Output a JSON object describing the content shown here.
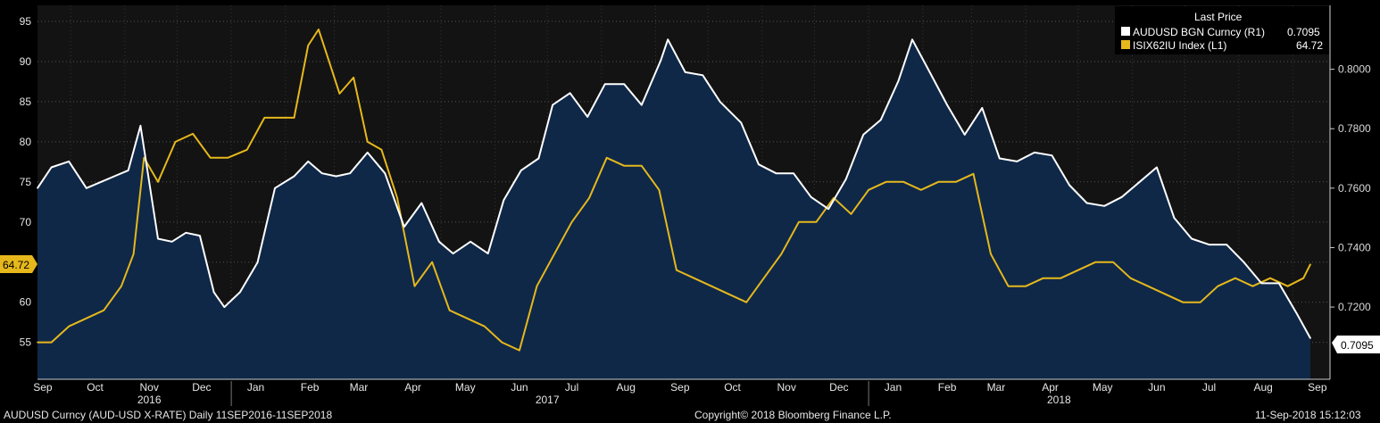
{
  "colors": {
    "background": "#000000",
    "plot_background": "#131313",
    "area_fill": "#0f2848",
    "audusd_line": "#ffffff",
    "isix_line": "#e6b81c",
    "grid": "#555555"
  },
  "legend": {
    "header": "Last Price",
    "entries": [
      {
        "name": "AUDUSD BGN Curncy (R1)",
        "value": "0.7095",
        "color": "#ffffff"
      },
      {
        "name": "ISIX62IU Index (L1)",
        "value": "64.72",
        "color": "#e6b81c"
      }
    ]
  },
  "footer": {
    "left": "AUDUSD Curncy (AUD-USD X-RATE) Daily 11SEP2016-11SEP2018",
    "center": "Copyright© 2018 Bloomberg Finance L.P.",
    "right": "11-Sep-2018 15:12:03"
  },
  "chart_data": {
    "type": "line",
    "grid": true,
    "legend_position": "top-right",
    "x_months": [
      "Sep",
      "Oct",
      "Nov",
      "Dec",
      "Jan",
      "Feb",
      "Mar",
      "Apr",
      "May",
      "Jun",
      "Jul",
      "Aug",
      "Sep",
      "Oct",
      "Nov",
      "Dec",
      "Jan",
      "Feb",
      "Mar",
      "Apr",
      "May",
      "Jun",
      "Jul",
      "Aug",
      "Sep"
    ],
    "x_years": [
      "2016",
      "2017",
      "2018"
    ],
    "y_left": {
      "ticks": [
        55,
        60,
        65,
        70,
        75,
        80,
        85,
        90,
        95
      ],
      "range": [
        50.4,
        97.0
      ],
      "last_value_label": "64.72"
    },
    "y_right": {
      "ticks": [
        "0.7200",
        "0.7400",
        "0.7600",
        "0.7800",
        "0.8000"
      ],
      "range": [
        0.6957,
        0.8215
      ],
      "last_value_label": "0.7095"
    },
    "series": [
      {
        "name": "AUDUSD BGN Curncy (R1)",
        "axis": "right",
        "x": [
          "2016-09-12",
          "2016-09-20",
          "2016-09-30",
          "2016-10-10",
          "2016-10-18",
          "2016-10-26",
          "2016-11-03",
          "2016-11-10",
          "2016-11-20",
          "2016-11-28",
          "2016-12-06",
          "2016-12-14",
          "2016-12-22",
          "2016-12-28",
          "2017-01-06",
          "2017-01-16",
          "2017-01-26",
          "2017-02-06",
          "2017-02-14",
          "2017-02-22",
          "2017-03-02",
          "2017-03-10",
          "2017-03-20",
          "2017-03-30",
          "2017-04-10",
          "2017-04-20",
          "2017-04-30",
          "2017-05-08",
          "2017-05-18",
          "2017-05-28",
          "2017-06-06",
          "2017-06-16",
          "2017-06-26",
          "2017-07-04",
          "2017-07-14",
          "2017-07-24",
          "2017-08-03",
          "2017-08-14",
          "2017-08-24",
          "2017-09-04",
          "2017-09-08",
          "2017-09-18",
          "2017-09-28",
          "2017-10-08",
          "2017-10-20",
          "2017-10-30",
          "2017-11-09",
          "2017-11-19",
          "2017-11-29",
          "2017-12-09",
          "2017-12-19",
          "2017-12-29",
          "2018-01-08",
          "2018-01-18",
          "2018-01-26",
          "2018-02-05",
          "2018-02-15",
          "2018-02-25",
          "2018-03-07",
          "2018-03-17",
          "2018-03-27",
          "2018-04-06",
          "2018-04-16",
          "2018-04-26",
          "2018-05-06",
          "2018-05-16",
          "2018-05-26",
          "2018-06-05",
          "2018-06-15",
          "2018-06-25",
          "2018-07-05",
          "2018-07-15",
          "2018-07-25",
          "2018-08-04",
          "2018-08-14",
          "2018-08-24",
          "2018-09-03",
          "2018-09-11"
        ],
        "values": [
          0.76,
          0.767,
          0.769,
          0.76,
          0.762,
          0.764,
          0.766,
          0.781,
          0.743,
          0.742,
          0.745,
          0.744,
          0.725,
          0.72,
          0.725,
          0.735,
          0.76,
          0.764,
          0.769,
          0.765,
          0.764,
          0.765,
          0.772,
          0.765,
          0.747,
          0.755,
          0.742,
          0.738,
          0.742,
          0.738,
          0.756,
          0.766,
          0.77,
          0.788,
          0.792,
          0.784,
          0.795,
          0.795,
          0.788,
          0.803,
          0.81,
          0.799,
          0.798,
          0.789,
          0.782,
          0.768,
          0.765,
          0.765,
          0.757,
          0.753,
          0.763,
          0.778,
          0.783,
          0.796,
          0.81,
          0.799,
          0.788,
          0.778,
          0.787,
          0.77,
          0.769,
          0.772,
          0.771,
          0.761,
          0.755,
          0.754,
          0.757,
          0.762,
          0.767,
          0.75,
          0.743,
          0.741,
          0.741,
          0.735,
          0.728,
          0.728,
          0.718,
          0.7095
        ]
      },
      {
        "name": "ISIX62IU Index (L1)",
        "axis": "left",
        "x": [
          "2016-09-12",
          "2016-09-20",
          "2016-09-30",
          "2016-10-10",
          "2016-10-20",
          "2016-10-30",
          "2016-11-06",
          "2016-11-12",
          "2016-11-20",
          "2016-11-30",
          "2016-12-10",
          "2016-12-20",
          "2016-12-30",
          "2017-01-10",
          "2017-01-20",
          "2017-01-30",
          "2017-02-06",
          "2017-02-14",
          "2017-02-20",
          "2017-02-26",
          "2017-03-04",
          "2017-03-12",
          "2017-03-20",
          "2017-03-28",
          "2017-04-06",
          "2017-04-16",
          "2017-04-26",
          "2017-05-06",
          "2017-05-16",
          "2017-05-26",
          "2017-06-05",
          "2017-06-15",
          "2017-06-25",
          "2017-07-05",
          "2017-07-15",
          "2017-07-25",
          "2017-08-04",
          "2017-08-14",
          "2017-08-24",
          "2017-09-03",
          "2017-09-13",
          "2017-09-23",
          "2017-10-03",
          "2017-10-13",
          "2017-10-23",
          "2017-11-02",
          "2017-11-12",
          "2017-11-22",
          "2017-12-02",
          "2017-12-12",
          "2017-12-22",
          "2018-01-01",
          "2018-01-11",
          "2018-01-21",
          "2018-01-31",
          "2018-02-10",
          "2018-02-20",
          "2018-03-02",
          "2018-03-12",
          "2018-03-22",
          "2018-04-01",
          "2018-04-11",
          "2018-04-21",
          "2018-05-01",
          "2018-05-11",
          "2018-05-21",
          "2018-05-31",
          "2018-06-10",
          "2018-06-20",
          "2018-06-30",
          "2018-07-10",
          "2018-07-20",
          "2018-07-30",
          "2018-08-09",
          "2018-08-19",
          "2018-08-29",
          "2018-09-07",
          "2018-09-11"
        ],
        "values": [
          55,
          55,
          57,
          58,
          59,
          62,
          66,
          78,
          75,
          80,
          81,
          78,
          78,
          79,
          83,
          83,
          83,
          92,
          94,
          90,
          86,
          88,
          80,
          79,
          73,
          62,
          65,
          59,
          58,
          57,
          55,
          54,
          62,
          66,
          70,
          73,
          78,
          77,
          77,
          74,
          64,
          63,
          62,
          61,
          60,
          63,
          66,
          70,
          70,
          73,
          71,
          74,
          75,
          75,
          74,
          75,
          75,
          76,
          66,
          62,
          62,
          63,
          63,
          64,
          65,
          65,
          63,
          62,
          61,
          60,
          60,
          62,
          63,
          62,
          63,
          62,
          63,
          64.72
        ]
      }
    ]
  }
}
